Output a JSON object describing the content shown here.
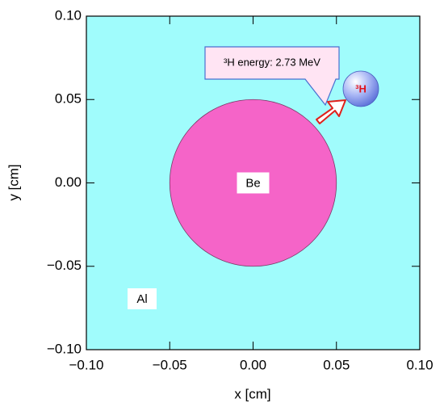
{
  "chart_data": {
    "type": "geometry",
    "x_label": "x [cm]",
    "y_label": "y [cm]",
    "xlim": [
      -0.1,
      0.1
    ],
    "ylim": [
      -0.1,
      0.1
    ],
    "xticks": [
      {
        "value": -0.1,
        "label": "−0.10"
      },
      {
        "value": -0.05,
        "label": "−0.05"
      },
      {
        "value": 0,
        "label": "0.00"
      },
      {
        "value": 0.05,
        "label": "0.05"
      },
      {
        "value": 0.1,
        "label": "0.10"
      }
    ],
    "yticks": [
      {
        "value": -0.1,
        "label": "−0.10"
      },
      {
        "value": -0.05,
        "label": "−0.05"
      },
      {
        "value": 0,
        "label": "0.00"
      },
      {
        "value": 0.05,
        "label": "0.05"
      },
      {
        "value": 0.1,
        "label": "0.10"
      }
    ],
    "background": {
      "label": "Al",
      "color": "#a0fcfc"
    },
    "circle": {
      "x": 0,
      "y": 0,
      "radius": 0.05,
      "label": "Be",
      "color": "#f564c8"
    },
    "particle": {
      "label": "³H",
      "callout": "³H energy: 2.73 MeV"
    }
  }
}
